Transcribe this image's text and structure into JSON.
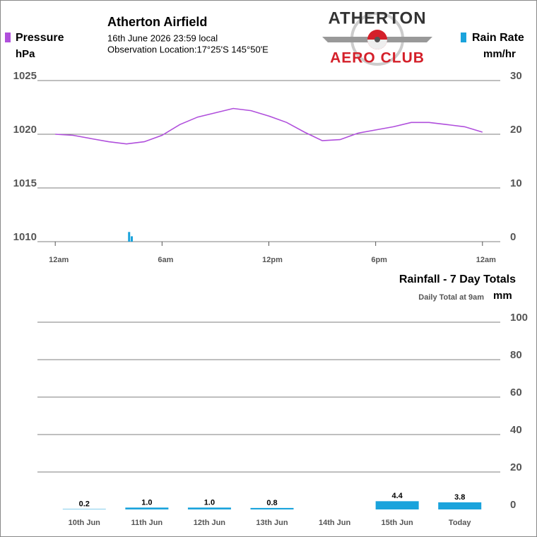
{
  "header": {
    "title": "Atherton Airfield",
    "timestamp": "16th June 2026  23:59 local",
    "location": "Observation Location:17°25'S 145°50'E",
    "logo_top": "ATHERTON",
    "logo_bottom": "AERO CLUB"
  },
  "chart_data": [
    {
      "type": "combo",
      "xlim": [
        -1,
        25
      ],
      "xticks": [
        {
          "value": 0,
          "label": "12am"
        },
        {
          "value": 6,
          "label": "6am"
        },
        {
          "value": 12,
          "label": "12pm"
        },
        {
          "value": 18,
          "label": "6pm"
        },
        {
          "value": 24,
          "label": "12am"
        }
      ],
      "ylim": [
        1010,
        1025
      ],
      "yticks": [
        1010,
        1015,
        1020,
        1025
      ],
      "y2lim": [
        0,
        30
      ],
      "y2ticks": [
        0,
        10,
        20,
        30
      ],
      "grid": true,
      "series": [
        {
          "name": "Pressure",
          "unit": "hPa",
          "kind": "line",
          "color": "#b04fdc",
          "x": [
            0,
            1,
            2,
            3,
            4,
            5,
            6,
            7,
            8,
            9,
            10,
            11,
            12,
            13,
            14,
            15,
            16,
            17,
            18,
            19,
            20,
            21,
            22,
            23,
            24
          ],
          "values": [
            1020.0,
            1019.9,
            1019.6,
            1019.3,
            1019.1,
            1019.3,
            1019.9,
            1020.9,
            1021.6,
            1022.0,
            1022.4,
            1022.2,
            1021.7,
            1021.1,
            1020.2,
            1019.4,
            1019.5,
            1020.1,
            1020.4,
            1020.7,
            1021.1,
            1021.1,
            1020.9,
            1020.7,
            1020.2
          ]
        },
        {
          "name": "Rain Rate",
          "unit": "mm/hr",
          "kind": "bar",
          "axis": "y2",
          "color": "#1aa3dc",
          "x": [
            4.15,
            4.3
          ],
          "values": [
            1.8,
            1.0
          ]
        }
      ]
    },
    {
      "type": "bar",
      "title": "Rainfall - 7 Day Totals",
      "subtitle": "Daily Total at 9am",
      "ylabel": "mm",
      "categories": [
        "10th Jun",
        "11th Jun",
        "12th Jun",
        "13th Jun",
        "14th Jun",
        "15th Jun",
        "Today"
      ],
      "values": [
        0.2,
        1,
        1,
        0.8,
        null,
        4.4,
        3.8
      ],
      "value_labels": [
        "0.2",
        "1.0",
        "1.0",
        "0.8",
        null,
        "4.4",
        "3.8"
      ],
      "color": "#1aa3dc",
      "ylim": [
        0,
        100
      ],
      "yticks": [
        0,
        20,
        40,
        60,
        80,
        100
      ],
      "grid": true
    }
  ]
}
